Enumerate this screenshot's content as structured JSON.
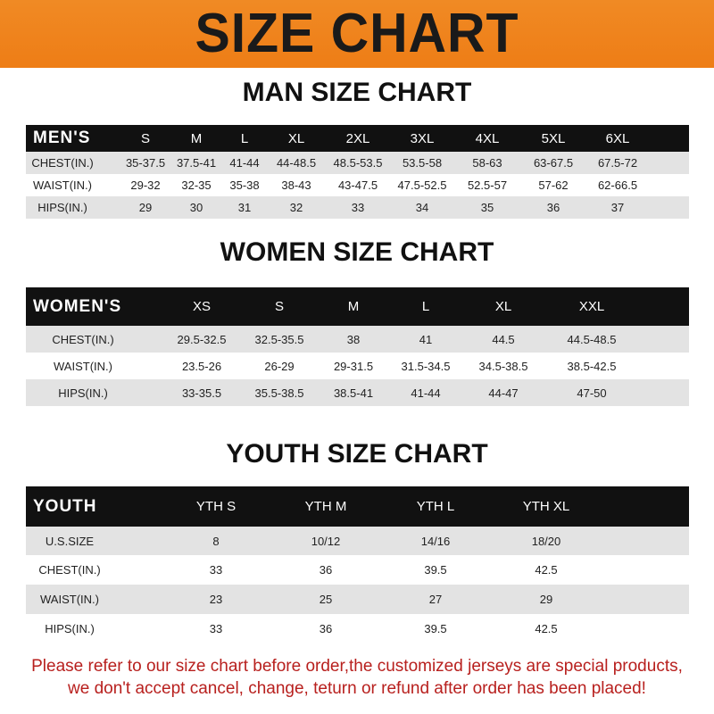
{
  "banner": {
    "title": "SIZE CHART",
    "color": "#ef8420"
  },
  "men": {
    "title": "MAN SIZE CHART",
    "headers": [
      "MEN'S",
      "S",
      "M",
      "L",
      "XL",
      "2XL",
      "3XL",
      "4XL",
      "5XL",
      "6XL"
    ],
    "rows": [
      [
        "CHEST(IN.)",
        "35-37.5",
        "37.5-41",
        "41-44",
        "44-48.5",
        "48.5-53.5",
        "53.5-58",
        "58-63",
        "63-67.5",
        "67.5-72"
      ],
      [
        "WAIST(IN.)",
        "29-32",
        "32-35",
        "35-38",
        "38-43",
        "43-47.5",
        "47.5-52.5",
        "52.5-57",
        "57-62",
        "62-66.5"
      ],
      [
        "HIPS(IN.)",
        "29",
        "30",
        "31",
        "32",
        "33",
        "34",
        "35",
        "36",
        "37"
      ]
    ]
  },
  "women": {
    "title": "WOMEN SIZE CHART",
    "headers": [
      "WOMEN'S",
      "XS",
      "S",
      "M",
      "L",
      "XL",
      "XXL"
    ],
    "rows": [
      [
        "CHEST(IN.)",
        "29.5-32.5",
        "32.5-35.5",
        "38",
        "41",
        "44.5",
        "44.5-48.5"
      ],
      [
        "WAIST(IN.)",
        "23.5-26",
        "26-29",
        "29-31.5",
        "31.5-34.5",
        "34.5-38.5",
        "38.5-42.5"
      ],
      [
        "HIPS(IN.)",
        "33-35.5",
        "35.5-38.5",
        "38.5-41",
        "41-44",
        "44-47",
        "47-50"
      ]
    ]
  },
  "youth": {
    "title": "YOUTH SIZE CHART",
    "headers": [
      "YOUTH",
      "YTH S",
      "YTH M",
      "YTH L",
      "YTH XL"
    ],
    "rows": [
      [
        "U.S.SIZE",
        "8",
        "10/12",
        "14/16",
        "18/20"
      ],
      [
        "CHEST(IN.)",
        "33",
        "36",
        "39.5",
        "42.5"
      ],
      [
        "WAIST(IN.)",
        "23",
        "25",
        "27",
        "29"
      ],
      [
        "HIPS(IN.)",
        "33",
        "36",
        "39.5",
        "42.5"
      ]
    ]
  },
  "footer": {
    "line1": "Please refer to our size chart before order,the customized jerseys are special products,",
    "line2": "we don't accept cancel, change, teturn or refund after order has been placed!",
    "color": "#b8201e"
  }
}
